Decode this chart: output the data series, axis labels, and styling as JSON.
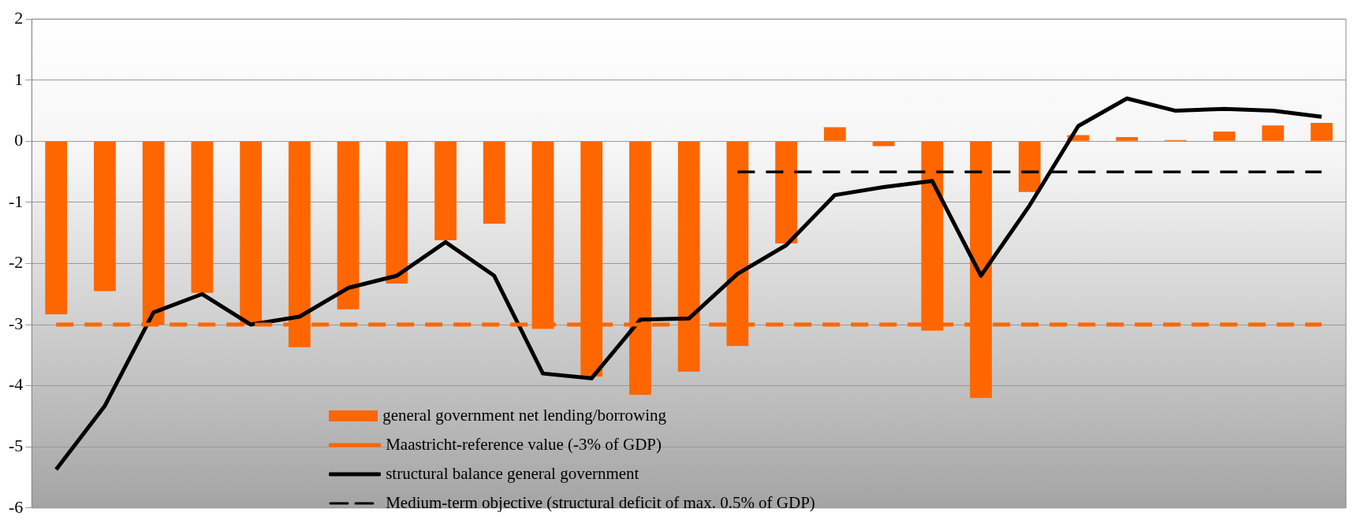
{
  "chart_data": {
    "type": "bar",
    "categories": [
      null,
      null,
      null,
      null,
      null,
      null,
      null,
      null,
      null,
      null,
      null,
      null,
      null,
      null,
      null,
      null,
      null,
      null,
      null,
      null,
      null,
      null,
      null,
      null,
      null,
      null,
      null
    ],
    "series": [
      {
        "name": "general government net lending/borrowing",
        "color": "#ff6600",
        "values": [
          -2.83,
          -2.45,
          -3.0,
          -2.48,
          -3.0,
          -3.37,
          -2.75,
          -2.33,
          -1.62,
          -1.35,
          -3.07,
          -3.85,
          -4.15,
          -3.77,
          -3.35,
          -1.67,
          0.23,
          -0.08,
          -3.1,
          -4.2,
          -0.83,
          0.1,
          0.07,
          0.02,
          0.16,
          0.26,
          0.3
        ]
      },
      {
        "name": "Maastricht-reference value (-3% of GDP)",
        "type": "line",
        "color": "#ff6600",
        "line_style": "dashed",
        "values": [
          -3,
          -3,
          -3,
          -3,
          -3,
          -3,
          -3,
          -3,
          -3,
          -3,
          -3,
          -3,
          -3,
          -3,
          -3,
          -3,
          -3,
          -3,
          -3,
          -3,
          -3,
          -3,
          -3,
          -3,
          -3,
          -3,
          -3
        ]
      },
      {
        "name": "structural balance general government",
        "type": "line",
        "color": "#000000",
        "line_style": "solid",
        "values": [
          -5.37,
          -4.33,
          -2.8,
          -2.5,
          -3.0,
          -2.87,
          -2.4,
          -2.2,
          -1.65,
          -2.2,
          -3.8,
          -3.88,
          -2.92,
          -2.9,
          -2.17,
          -1.7,
          -0.88,
          -0.75,
          -0.65,
          -2.2,
          -1.05,
          0.25,
          0.7,
          0.5,
          0.53,
          0.5,
          0.4
        ]
      },
      {
        "name": "Medium-term objective (structural deficit of max. 0.5% of GDP)",
        "type": "line",
        "color": "#000000",
        "line_style": "dashed",
        "values": [
          null,
          null,
          null,
          null,
          null,
          null,
          null,
          null,
          null,
          null,
          null,
          null,
          null,
          null,
          -0.5,
          -0.5,
          -0.5,
          -0.5,
          -0.5,
          -0.5,
          -0.5,
          -0.5,
          -0.5,
          -0.5,
          -0.5,
          -0.5,
          -0.5
        ]
      }
    ],
    "ylim": [
      -6,
      2
    ],
    "yticks": [
      -6,
      -5,
      -4,
      -3,
      -2,
      -1,
      0,
      1,
      2
    ],
    "grid": "y",
    "legend": "bottom",
    "marker": "none"
  }
}
